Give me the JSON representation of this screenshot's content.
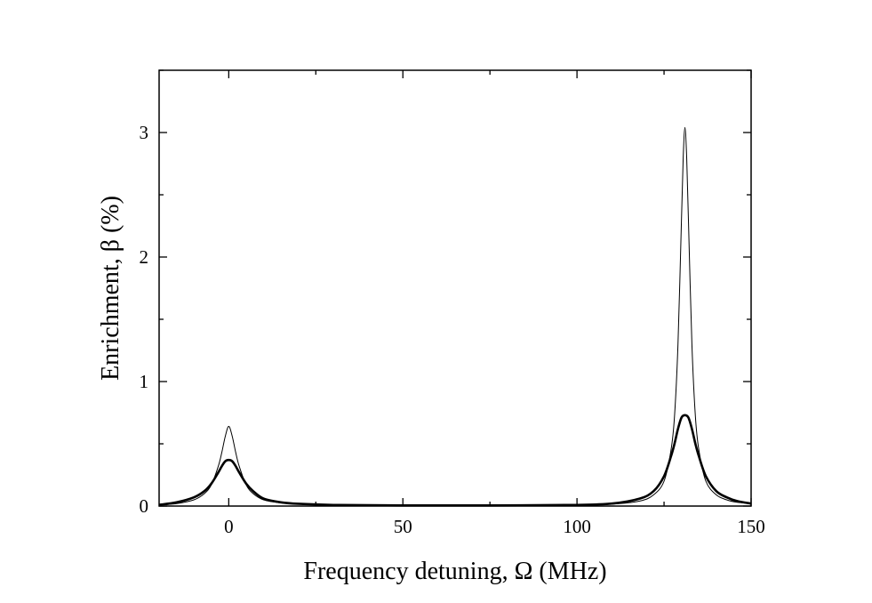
{
  "chart_data": {
    "type": "line",
    "title": "",
    "xlabel": "Frequency detuning, Ω (MHz)",
    "ylabel": "Enrichment, β (%)",
    "xlim": [
      -20,
      150
    ],
    "ylim": [
      0,
      3.5
    ],
    "xticks": [
      0,
      50,
      100,
      150
    ],
    "yticks": [
      0,
      1,
      2,
      3
    ],
    "xtick_labels": [
      "0",
      "50",
      "100",
      "150"
    ],
    "ytick_labels": [
      "0",
      "1",
      "2",
      "3"
    ],
    "x_minor_step": 25,
    "y_minor_step": 0.5,
    "grid": false,
    "legend": "none",
    "series": [
      {
        "style": "thin",
        "color": "#000000",
        "points": [
          [
            -20,
            0.01
          ],
          [
            -15,
            0.02
          ],
          [
            -10,
            0.05
          ],
          [
            -7,
            0.1
          ],
          [
            -5,
            0.17
          ],
          [
            -3,
            0.32
          ],
          [
            -2,
            0.43
          ],
          [
            -1,
            0.56
          ],
          [
            0,
            0.64
          ],
          [
            1,
            0.56
          ],
          [
            2,
            0.43
          ],
          [
            3,
            0.32
          ],
          [
            5,
            0.17
          ],
          [
            7,
            0.1
          ],
          [
            10,
            0.05
          ],
          [
            15,
            0.025
          ],
          [
            20,
            0.015
          ],
          [
            30,
            0.008
          ],
          [
            50,
            0.005
          ],
          [
            75,
            0.005
          ],
          [
            100,
            0.008
          ],
          [
            110,
            0.015
          ],
          [
            118,
            0.04
          ],
          [
            122,
            0.09
          ],
          [
            125,
            0.2
          ],
          [
            127,
            0.45
          ],
          [
            128,
            0.72
          ],
          [
            129,
            1.3
          ],
          [
            130,
            2.3
          ],
          [
            130.5,
            2.8
          ],
          [
            131,
            3.04
          ],
          [
            131.5,
            2.8
          ],
          [
            132,
            2.3
          ],
          [
            133,
            1.3
          ],
          [
            134,
            0.72
          ],
          [
            135,
            0.45
          ],
          [
            137,
            0.2
          ],
          [
            140,
            0.09
          ],
          [
            143,
            0.05
          ],
          [
            146,
            0.03
          ],
          [
            150,
            0.02
          ]
        ]
      },
      {
        "style": "thick",
        "color": "#000000",
        "points": [
          [
            -20,
            0.01
          ],
          [
            -15,
            0.03
          ],
          [
            -10,
            0.07
          ],
          [
            -7,
            0.12
          ],
          [
            -5,
            0.18
          ],
          [
            -3,
            0.27
          ],
          [
            -2,
            0.32
          ],
          [
            -1,
            0.36
          ],
          [
            0,
            0.37
          ],
          [
            1,
            0.36
          ],
          [
            2,
            0.32
          ],
          [
            3,
            0.27
          ],
          [
            5,
            0.18
          ],
          [
            7,
            0.12
          ],
          [
            10,
            0.06
          ],
          [
            15,
            0.03
          ],
          [
            20,
            0.018
          ],
          [
            30,
            0.009
          ],
          [
            50,
            0.005
          ],
          [
            75,
            0.005
          ],
          [
            100,
            0.009
          ],
          [
            110,
            0.02
          ],
          [
            118,
            0.06
          ],
          [
            122,
            0.12
          ],
          [
            125,
            0.24
          ],
          [
            127,
            0.4
          ],
          [
            128,
            0.5
          ],
          [
            129,
            0.62
          ],
          [
            130,
            0.71
          ],
          [
            131,
            0.73
          ],
          [
            132,
            0.71
          ],
          [
            133,
            0.62
          ],
          [
            134,
            0.5
          ],
          [
            135,
            0.4
          ],
          [
            137,
            0.24
          ],
          [
            140,
            0.12
          ],
          [
            143,
            0.07
          ],
          [
            146,
            0.04
          ],
          [
            150,
            0.02
          ]
        ]
      }
    ]
  }
}
